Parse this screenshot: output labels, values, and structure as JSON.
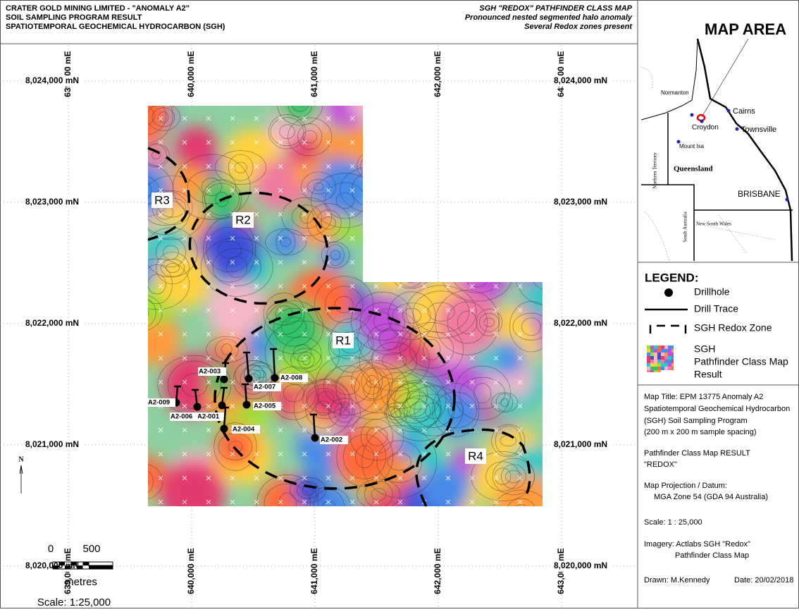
{
  "header": {
    "left": [
      "CRATER GOLD MINING LIMITED  -  \"ANOMALY A2\"",
      "SOIL SAMPLING PROGRAM  RESULT",
      "SPATIOTEMPORAL GEOCHEMICAL HYDROCARBON (SGH)"
    ],
    "right": [
      "SGH \"REDOX\"  PATHFINDER CLASS MAP",
      "Pronounced nested segmented halo anomaly",
      "Several Redox zones present"
    ]
  },
  "map": {
    "eastings": [
      "639,000 mE",
      "640,000 mE",
      "641,000 mE",
      "642,000 mE",
      "643,000 mE"
    ],
    "northings": [
      "8,024,000 mN",
      "8,023,000 mN",
      "8,022,000 mN",
      "8,021,000 mN",
      "8,020,000 mN"
    ],
    "zones": [
      "R1",
      "R2",
      "R3",
      "R4"
    ],
    "drillholes": [
      "A2-001",
      "A2-002",
      "A2-003",
      "A2-004",
      "A2-005",
      "A2-006",
      "A2-007",
      "A2-008",
      "A2-009"
    ],
    "north": "N",
    "scale_bar": {
      "start": "0",
      "end": "500",
      "unit": "metres",
      "scale": "Scale: 1:25,000"
    }
  },
  "inset": {
    "title": "MAP AREA",
    "places": [
      "Normanton",
      "Croydon",
      "Cairns",
      "Townsville",
      "Mount Isa",
      "Queensland",
      "Northern Territory",
      "South Australia",
      "New South Wales",
      "BRISBANE"
    ]
  },
  "legend": {
    "title": "LEGEND:",
    "items": [
      "Drillhole",
      "Drill Trace",
      "SGH Redox Zone",
      [
        "SGH",
        "Pathfinder Class Map",
        "Result"
      ]
    ]
  },
  "info": [
    "Map Title:  EPM 13775 Anomaly A2",
    "Spatiotemporal Geochemical Hydrocarbon",
    "(SGH) Soil Sampling Program",
    "(200 m x 200 m sample spacing)",
    "Pathfinder Class Map RESULT",
    "\"REDOX\"",
    "Map Projection / Datum:",
    "MGA Zone 54 (GDA 94 Australia)",
    "Scale: 1 : 25,000",
    "Imagery: Actlabs SGH \"Redox\"",
    "Pathfinder Class Map",
    "Drawn: M.Kennedy",
    "Date: 20/02/2018"
  ]
}
